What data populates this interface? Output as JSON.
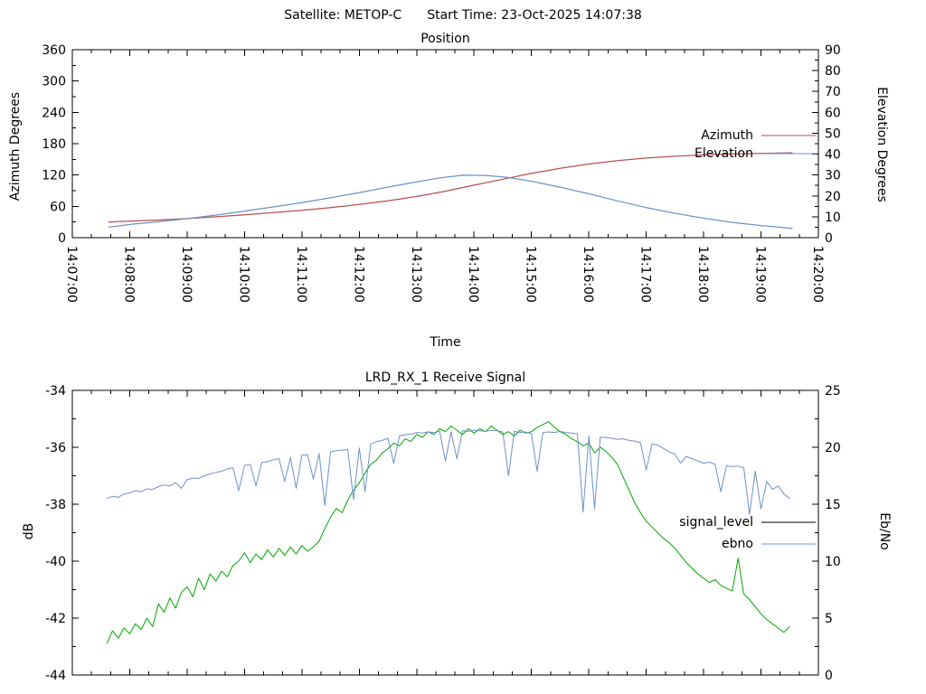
{
  "header": {
    "satellite_label": "Satellite: METOP-C",
    "start_time_label": "Start Time: 23-Oct-2025 14:07:38"
  },
  "colors": {
    "azimuth": "#b35151",
    "elevation": "#6d92c5",
    "signal_level": "#00a500",
    "signal_level_key": "#000000",
    "ebno": "#6d92c5",
    "axis": "#000000",
    "background": "#ffffff",
    "text": "#000000"
  },
  "chart_data": [
    {
      "type": "line",
      "title": "Position",
      "xlabel": "Time",
      "ylabel_left": "Azimuth Degrees",
      "ylabel_right": "Elevation Degrees",
      "x_range_minutes": [
        0,
        13
      ],
      "x_ticks": [
        "14:07:00",
        "14:08:00",
        "14:09:00",
        "14:10:00",
        "14:11:00",
        "14:12:00",
        "14:13:00",
        "14:14:00",
        "14:15:00",
        "14:16:00",
        "14:17:00",
        "14:18:00",
        "14:19:00",
        "14:20:00"
      ],
      "x_labels_visible": true,
      "x_minor_per_major": 3,
      "yleft_range": [
        0,
        360
      ],
      "yleft_ticks": [
        0,
        60,
        120,
        180,
        240,
        300,
        360
      ],
      "yleft_minor_step": 30,
      "yright_range": [
        0,
        90
      ],
      "yright_ticks": [
        0,
        10,
        20,
        30,
        40,
        50,
        60,
        70,
        80,
        90
      ],
      "yright_minor_step": 5,
      "legend": [
        {
          "label": "Azimuth",
          "color": "#b35151"
        },
        {
          "label": "Elevation",
          "color": "#6d92c5"
        }
      ],
      "series": [
        {
          "name": "Azimuth",
          "axis": "left",
          "color": "#b35151",
          "points": [
            [
              0.63,
              30
            ],
            [
              1,
              31.5
            ],
            [
              1.5,
              33.8
            ],
            [
              2,
              36.5
            ],
            [
              2.5,
              40
            ],
            [
              3,
              43.8
            ],
            [
              3.5,
              48
            ],
            [
              4,
              52.5
            ],
            [
              4.5,
              57.5
            ],
            [
              5,
              63.5
            ],
            [
              5.5,
              70.5
            ],
            [
              6,
              79
            ],
            [
              6.5,
              89
            ],
            [
              7,
              100.5
            ],
            [
              7.5,
              112
            ],
            [
              8,
              123
            ],
            [
              8.5,
              133
            ],
            [
              9,
              141
            ],
            [
              9.5,
              147.5
            ],
            [
              10,
              152.5
            ],
            [
              10.5,
              156
            ],
            [
              11,
              158.5
            ],
            [
              11.5,
              160.3
            ],
            [
              12,
              161.5
            ],
            [
              12.55,
              162.5
            ]
          ]
        },
        {
          "name": "Elevation",
          "axis": "right",
          "color": "#6d92c5",
          "points": [
            [
              0.63,
              5
            ],
            [
              1,
              6.3
            ],
            [
              1.5,
              7.6
            ],
            [
              2,
              9.1
            ],
            [
              2.5,
              10.8
            ],
            [
              3,
              12.7
            ],
            [
              3.5,
              14.7
            ],
            [
              4,
              16.8
            ],
            [
              4.5,
              19.1
            ],
            [
              5,
              21.6
            ],
            [
              5.5,
              24.2
            ],
            [
              6,
              26.7
            ],
            [
              6.4,
              28.6
            ],
            [
              6.8,
              29.9
            ],
            [
              7.2,
              29.8
            ],
            [
              7.6,
              28.8
            ],
            [
              8,
              27
            ],
            [
              8.5,
              24.2
            ],
            [
              9,
              21
            ],
            [
              9.5,
              17.6
            ],
            [
              10,
              14.4
            ],
            [
              10.5,
              11.7
            ],
            [
              11,
              9.3
            ],
            [
              11.5,
              7.3
            ],
            [
              12,
              5.8
            ],
            [
              12.55,
              4.4
            ]
          ]
        }
      ]
    },
    {
      "type": "line",
      "title": "LRD_RX_1 Receive Signal",
      "xlabel": "",
      "ylabel_left": "dB",
      "ylabel_right": "Eb/No",
      "x_range_minutes": [
        0,
        13
      ],
      "x_ticks": [
        "14:07:00",
        "14:08:00",
        "14:09:00",
        "14:10:00",
        "14:11:00",
        "14:12:00",
        "14:13:00",
        "14:14:00",
        "14:15:00",
        "14:16:00",
        "14:17:00",
        "14:18:00",
        "14:19:00",
        "14:20:00"
      ],
      "x_labels_visible": false,
      "x_minor_per_major": 3,
      "yleft_range": [
        -44,
        -34
      ],
      "yleft_ticks": [
        -44,
        -42,
        -40,
        -38,
        -36,
        -34
      ],
      "yleft_minor_step": 1,
      "yright_range": [
        0,
        25
      ],
      "yright_ticks": [
        0,
        5,
        10,
        15,
        20,
        25
      ],
      "yright_minor_step": 2.5,
      "legend": [
        {
          "label": "signal_level",
          "color": "#000000"
        },
        {
          "label": "ebno",
          "color": "#6d92c5"
        }
      ],
      "series": [
        {
          "name": "signal_level",
          "axis": "left",
          "color": "#00a500",
          "t0": 0.6,
          "dt": 0.1,
          "values": [
            -42.9,
            -42.45,
            -42.7,
            -42.35,
            -42.55,
            -42.2,
            -42.4,
            -42.0,
            -42.3,
            -41.5,
            -41.8,
            -41.3,
            -41.65,
            -41.1,
            -40.9,
            -41.25,
            -40.6,
            -41.0,
            -40.45,
            -40.7,
            -40.35,
            -40.55,
            -40.15,
            -40.0,
            -39.7,
            -40.05,
            -39.75,
            -39.95,
            -39.6,
            -39.85,
            -39.55,
            -39.8,
            -39.5,
            -39.75,
            -39.45,
            -39.65,
            -39.5,
            -39.3,
            -38.85,
            -38.45,
            -38.15,
            -38.3,
            -37.85,
            -37.5,
            -37.25,
            -36.9,
            -36.6,
            -36.45,
            -36.2,
            -36.05,
            -35.85,
            -35.95,
            -35.7,
            -35.8,
            -35.55,
            -35.65,
            -35.45,
            -35.55,
            -35.35,
            -35.45,
            -35.25,
            -35.4,
            -35.55,
            -35.35,
            -35.5,
            -35.35,
            -35.45,
            -35.25,
            -35.4,
            -35.55,
            -35.45,
            -35.6,
            -35.4,
            -35.5,
            -35.45,
            -35.3,
            -35.2,
            -35.1,
            -35.3,
            -35.45,
            -35.55,
            -35.7,
            -35.8,
            -35.95,
            -35.85,
            -36.2,
            -36.0,
            -36.15,
            -36.35,
            -36.6,
            -37.05,
            -37.5,
            -37.95,
            -38.3,
            -38.6,
            -38.8,
            -39.0,
            -39.2,
            -39.35,
            -39.55,
            -39.8,
            -40.05,
            -40.25,
            -40.45,
            -40.6,
            -40.75,
            -40.65,
            -40.85,
            -40.95,
            -41.05,
            -39.9,
            -41.15,
            -41.35,
            -41.6,
            -41.85,
            -42.05,
            -42.2,
            -42.35,
            -42.5,
            -42.3
          ]
        },
        {
          "name": "ebno",
          "axis": "right",
          "color": "#6d92c5",
          "t0": 0.6,
          "dt": 0.1,
          "values": [
            15.5,
            15.7,
            15.6,
            15.9,
            16.0,
            16.2,
            16.1,
            16.35,
            16.3,
            16.55,
            16.7,
            16.6,
            16.9,
            16.4,
            17.15,
            17.3,
            17.25,
            17.5,
            17.65,
            17.8,
            17.9,
            18.1,
            18.2,
            16.2,
            18.4,
            18.5,
            16.6,
            18.65,
            18.75,
            18.9,
            19.0,
            17.0,
            19.1,
            16.4,
            19.3,
            19.35,
            17.2,
            19.45,
            14.9,
            19.6,
            19.7,
            19.75,
            19.8,
            15.4,
            19.95,
            16.1,
            20.3,
            20.5,
            20.6,
            20.8,
            18.6,
            21.0,
            21.1,
            21.15,
            21.3,
            21.25,
            21.35,
            21.3,
            21.4,
            18.8,
            21.35,
            19.0,
            21.45,
            21.4,
            21.5,
            21.45,
            21.4,
            21.5,
            21.45,
            21.35,
            17.5,
            21.4,
            21.3,
            21.35,
            21.2,
            17.9,
            21.3,
            21.35,
            21.3,
            21.4,
            21.3,
            21.25,
            21.2,
            14.3,
            21.0,
            14.6,
            20.9,
            20.85,
            20.8,
            20.7,
            20.75,
            20.6,
            20.55,
            20.4,
            18.0,
            20.3,
            20.2,
            19.9,
            19.6,
            19.4,
            18.6,
            19.2,
            19.0,
            18.8,
            18.6,
            18.7,
            18.5,
            16.1,
            18.4,
            18.3,
            18.35,
            18.2,
            14.1,
            17.9,
            14.6,
            17.0,
            16.3,
            16.6,
            15.9,
            15.5
          ]
        }
      ]
    }
  ]
}
